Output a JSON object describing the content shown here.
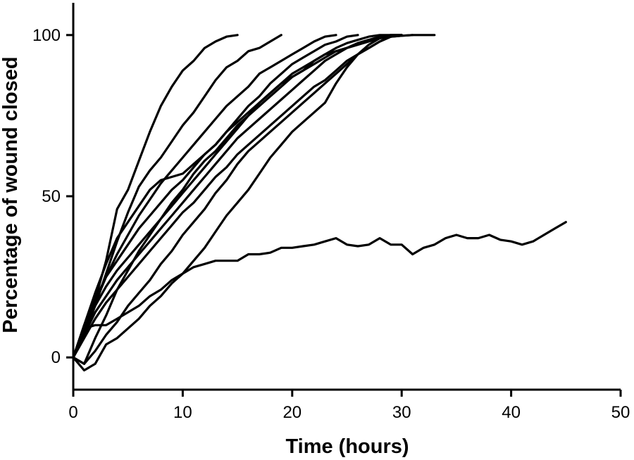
{
  "chart_data": {
    "type": "line",
    "title": "",
    "xlabel": "Time (hours)",
    "ylabel": "Percentage of wound closed",
    "xlim": [
      0,
      50
    ],
    "ylim": [
      -10,
      110
    ],
    "xticks": [
      0,
      10,
      20,
      30,
      40,
      50
    ],
    "yticks": [
      0,
      50,
      100
    ],
    "grid": false,
    "legend": "none",
    "line_color": "#000000",
    "series": [
      {
        "x": [
          0,
          1,
          2,
          3,
          4,
          5,
          6,
          7,
          8,
          9,
          10,
          11,
          12,
          13,
          14,
          15
        ],
        "y": [
          0,
          8,
          18,
          30,
          46,
          52,
          61,
          70,
          78,
          84,
          89,
          92,
          96,
          98,
          99.5,
          100
        ]
      },
      {
        "x": [
          0,
          1,
          2,
          3,
          4,
          5,
          6,
          7,
          8,
          9,
          10,
          11,
          12,
          13,
          14,
          15,
          16,
          17,
          18,
          19
        ],
        "y": [
          0,
          7,
          16,
          26,
          36,
          45,
          53,
          58,
          62,
          67,
          72,
          76,
          81,
          86,
          90,
          92,
          95,
          96,
          98,
          100
        ]
      },
      {
        "x": [
          0,
          1,
          2,
          3,
          4,
          5,
          6,
          7,
          8,
          9,
          10,
          11,
          12,
          13,
          14,
          15,
          16,
          17,
          18,
          19,
          20,
          21,
          22,
          23,
          24
        ],
        "y": [
          0,
          9,
          17,
          25,
          32,
          38,
          44,
          49,
          54,
          58,
          62,
          66,
          70,
          74,
          78,
          81,
          84,
          88,
          90,
          92,
          94,
          96,
          98,
          99.5,
          100
        ]
      },
      {
        "x": [
          0,
          1,
          2,
          3,
          4,
          5,
          6,
          7,
          8,
          9,
          10,
          11,
          12,
          13,
          14,
          15,
          16,
          17,
          18,
          19,
          20,
          21,
          22,
          23,
          24,
          25,
          26
        ],
        "y": [
          0,
          10,
          20,
          29,
          37,
          42,
          47,
          52,
          55,
          56,
          57,
          60,
          63,
          66,
          70,
          74,
          78,
          81,
          85,
          88,
          91,
          93,
          95,
          97,
          98,
          99.5,
          100
        ]
      },
      {
        "x": [
          0,
          1,
          2,
          3,
          4,
          5,
          6,
          7,
          8,
          9,
          10,
          11,
          12,
          13,
          14,
          15,
          16,
          17,
          18,
          19,
          20,
          21,
          22,
          23,
          24,
          25,
          26,
          27,
          28,
          29,
          30,
          31
        ],
        "y": [
          0,
          10,
          18,
          25,
          30,
          35,
          40,
          44,
          48,
          52,
          55,
          59,
          63,
          66,
          70,
          73,
          76,
          79,
          82,
          85,
          87,
          89,
          91,
          93,
          95,
          96,
          97.5,
          98.5,
          99,
          99.5,
          99.8,
          100
        ]
      },
      {
        "x": [
          0,
          1,
          2,
          3,
          4,
          5,
          6,
          7,
          8,
          9,
          10,
          11,
          12,
          13,
          14,
          15,
          16,
          17,
          18,
          19,
          20,
          21,
          22,
          23,
          24,
          25,
          26,
          27,
          28,
          29,
          30,
          31,
          32,
          33
        ],
        "y": [
          0,
          -2,
          6,
          13,
          21,
          27,
          33,
          38,
          43,
          48,
          52,
          57,
          61,
          64,
          68,
          72,
          75,
          79,
          82,
          85,
          88,
          90,
          92,
          94,
          95,
          96,
          97,
          98,
          99,
          99.5,
          99.8,
          100,
          100,
          100
        ]
      },
      {
        "x": [
          0,
          1,
          2,
          3,
          4,
          5,
          6,
          7,
          8,
          9,
          10,
          11,
          12,
          13,
          14,
          15,
          16,
          17,
          18,
          19,
          20,
          21,
          22,
          23,
          24,
          25,
          26,
          27,
          28,
          29,
          30
        ],
        "y": [
          0,
          8,
          16,
          22,
          27,
          31,
          35,
          39,
          43,
          47,
          51,
          55,
          59,
          63,
          67,
          71,
          75,
          78,
          81,
          84,
          87,
          89,
          92,
          94,
          96,
          97.5,
          98.5,
          99.5,
          100,
          100,
          100
        ]
      },
      {
        "x": [
          0,
          1,
          2,
          3,
          4,
          5,
          6,
          7,
          8,
          9,
          10,
          11,
          12,
          13,
          14,
          15,
          16,
          17,
          18,
          19,
          20,
          21,
          22,
          23,
          24,
          25,
          26,
          27,
          28,
          29,
          30
        ],
        "y": [
          0,
          7,
          14,
          19,
          24,
          28,
          32,
          36,
          40,
          44,
          48,
          52,
          56,
          60,
          64,
          68,
          71,
          74,
          77,
          80,
          83,
          86,
          89,
          92,
          94,
          96,
          97.5,
          98.5,
          99.5,
          100,
          100
        ]
      },
      {
        "x": [
          0,
          1,
          2,
          3,
          4,
          5,
          6,
          7,
          8,
          9,
          10,
          11,
          12,
          13,
          14,
          15,
          16,
          17,
          18,
          19,
          20,
          21,
          22,
          23,
          24,
          25,
          26,
          27,
          28,
          29,
          30
        ],
        "y": [
          0,
          6,
          12,
          17,
          21,
          25,
          29,
          33,
          37,
          41,
          45,
          48,
          52,
          56,
          59,
          63,
          66,
          69,
          72,
          75,
          78,
          81,
          84,
          86,
          89,
          92,
          94,
          96,
          98,
          99.5,
          100
        ]
      },
      {
        "x": [
          0,
          1,
          2,
          3,
          4,
          5,
          6,
          7,
          8,
          9,
          10,
          11,
          12,
          13,
          14,
          15,
          16,
          17,
          18,
          19,
          20,
          21,
          22,
          23,
          24,
          25,
          26,
          27,
          28,
          29,
          30
        ],
        "y": [
          0,
          -2,
          2,
          7,
          11,
          16,
          20,
          24,
          29,
          33,
          38,
          42,
          46,
          51,
          55,
          60,
          64,
          67,
          70,
          73,
          76,
          79,
          82,
          85,
          88,
          91,
          94,
          96,
          98,
          99.5,
          100
        ]
      },
      {
        "x": [
          0,
          1,
          2,
          3,
          4,
          5,
          6,
          7,
          8,
          9,
          10,
          11,
          12,
          13,
          14,
          15,
          16,
          17,
          18,
          19,
          20,
          21,
          22,
          23,
          24,
          25,
          26,
          27,
          28,
          29,
          30
        ],
        "y": [
          0,
          -4,
          -2,
          4,
          6,
          9,
          12,
          16,
          19,
          23,
          26,
          30,
          34,
          39,
          44,
          48,
          52,
          57,
          62,
          66,
          70,
          73,
          76,
          79,
          85,
          90,
          94,
          97,
          99,
          100,
          100
        ]
      },
      {
        "x": [
          0,
          1,
          2,
          3,
          4,
          5,
          6,
          7,
          8,
          9,
          10,
          11,
          12,
          13,
          14,
          15,
          16,
          17,
          18,
          19,
          20,
          21,
          22,
          23,
          24,
          25,
          26,
          27,
          28,
          29,
          30,
          31,
          32,
          33,
          34,
          35,
          36,
          37,
          38,
          39,
          40,
          41,
          42,
          43,
          44,
          45
        ],
        "y": [
          0,
          9,
          10,
          10,
          12,
          14,
          16,
          19,
          21,
          24,
          26,
          28,
          29,
          30,
          30,
          30,
          32,
          32,
          32.5,
          34,
          34,
          34.5,
          35,
          36,
          37,
          35,
          34.5,
          35,
          37,
          35,
          35,
          32,
          34,
          35,
          37,
          38,
          37,
          37,
          38,
          36.5,
          36,
          35,
          36,
          38,
          40,
          42
        ]
      }
    ]
  }
}
